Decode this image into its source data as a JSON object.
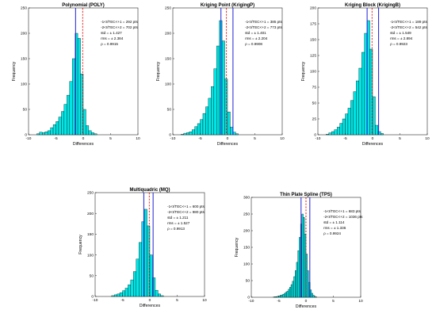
{
  "chart_data": [
    {
      "type": "bar",
      "title": "Polynomial (POLY)",
      "xlabel": "Differences",
      "ylabel": "Frequency",
      "xlim": [
        -10,
        10
      ],
      "ylim": [
        0,
        250
      ],
      "xticks": [
        -10,
        -5,
        0,
        5,
        10
      ],
      "yticks": [
        0,
        50,
        100,
        150,
        200,
        250
      ],
      "bin_width": 0.5,
      "bin_starts": [
        -8.5,
        -8,
        -7.5,
        -7,
        -6.5,
        -6,
        -5.5,
        -5,
        -4.5,
        -4,
        -3.5,
        -3,
        -2.5,
        -2,
        -1.5,
        -1,
        -0.5,
        0,
        0.5,
        1,
        1.5,
        2
      ],
      "values": [
        2,
        5,
        4,
        6,
        8,
        14,
        20,
        26,
        35,
        46,
        60,
        78,
        105,
        150,
        200,
        190,
        120,
        50,
        18,
        8,
        4,
        2
      ],
      "blue_line_x": -1.4,
      "red_line_x": -0.1,
      "stats": [
        "-1<I/TEC<+1 = 292 pts",
        "-2<I/TEC<+2 = 702 pts",
        "std  = ± 1.427",
        "rms = ± 2.384",
        "ρ = 0.9915"
      ]
    },
    {
      "type": "bar",
      "title": "Kriging Point (KrigingP)",
      "xlabel": "Differences",
      "ylabel": "Frequency",
      "xlim": [
        -10,
        10
      ],
      "ylim": [
        0,
        250
      ],
      "xticks": [
        -10,
        -5,
        0,
        5,
        10
      ],
      "yticks": [
        0,
        50,
        100,
        150,
        200,
        250
      ],
      "bin_width": 0.5,
      "bin_starts": [
        -8.5,
        -8,
        -7.5,
        -7,
        -6.5,
        -6,
        -5.5,
        -5,
        -4.5,
        -4,
        -3.5,
        -3,
        -2.5,
        -2,
        -1.5,
        -1,
        -0.5,
        0,
        0.5,
        1,
        1.5
      ],
      "values": [
        1,
        3,
        4,
        6,
        10,
        16,
        22,
        30,
        42,
        55,
        72,
        95,
        130,
        175,
        225,
        185,
        110,
        45,
        15,
        5,
        2
      ],
      "blue_line_x": -1.2,
      "red_line_x": -0.2,
      "second_blue_line_x": 1.0,
      "stats": [
        "-1<I/TEC<+1 = 385 pts",
        "-2<I/TEC<+2 = 773 pts",
        "std  = ± 1.401",
        "rms = ± 2.204",
        "ρ = 0.9908"
      ]
    },
    {
      "type": "bar",
      "title": "Kriging Block (KrigingB)",
      "xlabel": "Differences",
      "ylabel": "Frequency",
      "xlim": [
        -10,
        10
      ],
      "ylim": [
        0,
        200
      ],
      "xticks": [
        -10,
        -5,
        0,
        5,
        10
      ],
      "yticks": [
        0,
        25,
        50,
        75,
        100,
        125,
        150,
        175,
        200
      ],
      "bin_width": 0.5,
      "bin_starts": [
        -8.5,
        -8,
        -7.5,
        -7,
        -6.5,
        -6,
        -5.5,
        -5,
        -4.5,
        -4,
        -3.5,
        -3,
        -2.5,
        -2,
        -1.5,
        -1,
        -0.5,
        0,
        0.5,
        1,
        1.5
      ],
      "values": [
        1,
        3,
        5,
        8,
        12,
        18,
        25,
        33,
        42,
        54,
        68,
        85,
        105,
        130,
        160,
        180,
        135,
        60,
        15,
        5,
        2
      ],
      "blue_line_x": -1.0,
      "red_line_x": -0.1,
      "second_blue_line_x": 1.1,
      "stats": [
        "-1<I/TEC<+1 = 189 pts",
        "-2<I/TEC<+2 = 542 pts",
        "std  = ± 1.549",
        "rms = ± 2.894",
        "ρ = 0.9923"
      ]
    },
    {
      "type": "bar",
      "title": "Multiquadric (MQ)",
      "xlabel": "Differences",
      "ylabel": "Frequency",
      "xlim": [
        -10,
        10
      ],
      "ylim": [
        0,
        250
      ],
      "xticks": [
        -10,
        -5,
        0,
        5,
        10
      ],
      "yticks": [
        0,
        50,
        100,
        150,
        200,
        250
      ],
      "bin_width": 0.5,
      "bin_starts": [
        -7,
        -6.5,
        -6,
        -5.5,
        -5,
        -4.5,
        -4,
        -3.5,
        -3,
        -2.5,
        -2,
        -1.5,
        -1,
        -0.5,
        0,
        0.5,
        1,
        1.5,
        2
      ],
      "values": [
        2,
        4,
        6,
        9,
        14,
        20,
        28,
        40,
        60,
        90,
        130,
        180,
        210,
        170,
        100,
        45,
        15,
        6,
        2
      ],
      "blue_line_x": -1.1,
      "red_line_x": -0.1,
      "second_blue_line_x": 0.6,
      "stats": [
        "-1<I/TEC<+1 = 600 pts",
        "-2<I/TEC<+2 = 980 pts",
        "std  = ± 1.211",
        "rms = ± 1.527",
        "ρ = 0.9913"
      ]
    },
    {
      "type": "bar",
      "title": "Thin Plate Spline (TPS)",
      "xlabel": "Differences",
      "ylabel": "Frequency",
      "xlim": [
        -10,
        10
      ],
      "ylim": [
        0,
        300
      ],
      "xticks": [
        -10,
        -5,
        0,
        5,
        10
      ],
      "yticks": [
        0,
        50,
        100,
        150,
        200,
        250,
        300
      ],
      "bin_width": 0.25,
      "bin_starts": [
        -6,
        -5.75,
        -5.5,
        -5.25,
        -5,
        -4.75,
        -4.5,
        -4.25,
        -4,
        -3.75,
        -3.5,
        -3.25,
        -3,
        -2.75,
        -2.5,
        -2.25,
        -2,
        -1.75,
        -1.5,
        -1.25,
        -1,
        -0.75,
        -0.5,
        -0.25,
        0,
        0.25,
        0.5,
        0.75,
        1,
        1.25,
        1.5,
        1.75
      ],
      "values": [
        1,
        2,
        2,
        3,
        4,
        6,
        7,
        9,
        12,
        15,
        18,
        24,
        30,
        38,
        48,
        62,
        80,
        105,
        140,
        180,
        220,
        250,
        240,
        190,
        130,
        80,
        45,
        22,
        12,
        6,
        3,
        1
      ],
      "blue_line_x": -0.9,
      "red_line_x": 0.0,
      "second_blue_line_x": 0.7,
      "stats": [
        "-1<I/TEC<+1 = 683 pts",
        "-2<I/TEC<+2 = 1036 pts",
        "std  = ± 1.114",
        "rms = ± 1.336",
        "ρ = 0.9924"
      ]
    }
  ]
}
